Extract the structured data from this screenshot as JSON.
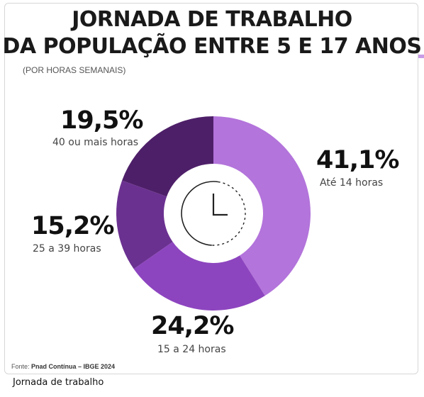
{
  "chart_data": {
    "type": "pie",
    "title_line1": "JORNADA DE TRABALHO",
    "title_line2_prefix": "DA POPULAÇÃO ENTRE",
    "title_line2_highlight": "5 E 17 ANOS",
    "subtitle": "(POR HORAS SEMANAIS)",
    "slices": [
      {
        "label": "Até 14 horas",
        "value": 41.1,
        "value_label": "41,1%",
        "color": "#b374db"
      },
      {
        "label": "15 a 24 horas",
        "value": 24.2,
        "value_label": "24,2%",
        "color": "#8d45bf"
      },
      {
        "label": "25 a 39 horas",
        "value": 15.2,
        "value_label": "15,2%",
        "color": "#6b3191"
      },
      {
        "label": "40 ou mais horas",
        "value": 19.5,
        "value_label": "19,5%",
        "color": "#4e1f69"
      }
    ],
    "center_icon": "clock-icon"
  },
  "source": {
    "prefix": "Fonte:",
    "text": "Pnad Contínua – IBGE 2024"
  },
  "caption": "Jornada de trabalho"
}
